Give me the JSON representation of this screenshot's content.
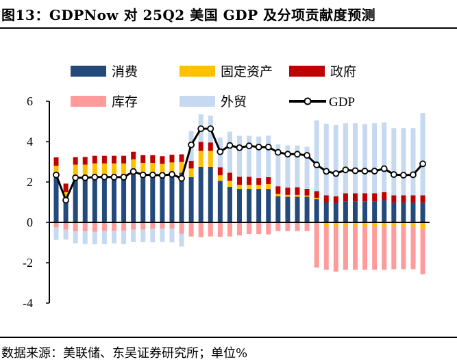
{
  "title": "图13：GDPNow 对 25Q2 美国 GDP 及分项贡献度预测",
  "source": "数据来源：美联储、东吴证券研究所；单位%",
  "chart_data": {
    "type": "bar",
    "stacked": true,
    "title": "",
    "xlabel": "",
    "ylabel": "",
    "ylim": [
      -4,
      6
    ],
    "yticks": [
      "6",
      "4",
      "2",
      "0",
      "-2",
      "-4"
    ],
    "ytick_values": [
      6,
      4,
      2,
      0,
      -2,
      -4
    ],
    "grid": false,
    "legend_position": "top",
    "n_points": 39,
    "series": [
      {
        "name": "消费",
        "type": "bar",
        "color": "#244A7C",
        "values": [
          2.35,
          1.28,
          2.24,
          2.24,
          2.24,
          2.28,
          2.28,
          2.28,
          2.52,
          2.35,
          2.35,
          2.31,
          2.37,
          2.46,
          2.24,
          2.75,
          2.75,
          2.05,
          1.76,
          1.66,
          1.66,
          1.66,
          1.66,
          1.29,
          1.27,
          1.27,
          1.27,
          1.15,
          1.0,
          0.95,
          1.04,
          1.04,
          1.04,
          1.04,
          1.1,
          0.98,
          0.98,
          0.98,
          0.98
        ]
      },
      {
        "name": "固定资产",
        "type": "bar",
        "color": "#FFC000",
        "values": [
          0.45,
          0.22,
          0.62,
          0.62,
          0.68,
          0.64,
          0.64,
          0.64,
          0.6,
          0.6,
          0.6,
          0.59,
          0.6,
          0.53,
          0.43,
          0.79,
          0.79,
          0.28,
          0.3,
          0.2,
          0.2,
          0.2,
          0.24,
          0.12,
          0.09,
          0.09,
          0.06,
          0.06,
          -0.2,
          -0.2,
          -0.2,
          -0.2,
          -0.2,
          -0.2,
          -0.2,
          -0.2,
          -0.2,
          -0.2,
          -0.33
        ]
      },
      {
        "name": "政府",
        "type": "bar",
        "color": "#C00000",
        "values": [
          0.42,
          0.42,
          0.37,
          0.38,
          0.38,
          0.38,
          0.38,
          0.38,
          0.38,
          0.38,
          0.38,
          0.38,
          0.38,
          0.38,
          0.38,
          0.45,
          0.42,
          0.4,
          0.4,
          0.4,
          0.4,
          0.34,
          0.34,
          0.38,
          0.36,
          0.38,
          0.33,
          0.34,
          0.34,
          0.34,
          0.4,
          0.4,
          0.4,
          0.4,
          0.4,
          0.36,
          0.36,
          0.36,
          0.36
        ]
      },
      {
        "name": "库存",
        "type": "bar",
        "color": "#FF9B9B",
        "values": [
          -0.25,
          -0.36,
          -0.45,
          -0.45,
          -0.47,
          -0.42,
          -0.42,
          -0.42,
          -0.36,
          -0.36,
          -0.31,
          -0.31,
          -0.31,
          -0.56,
          -0.7,
          -0.73,
          -0.7,
          -0.72,
          -0.7,
          -0.65,
          -0.58,
          -0.58,
          -0.6,
          -0.43,
          -0.43,
          -0.43,
          -0.43,
          -2.24,
          -2.15,
          -2.24,
          -2.15,
          -2.15,
          -2.15,
          -2.15,
          -2.15,
          -2.12,
          -2.12,
          -2.12,
          -2.24
        ]
      },
      {
        "name": "外贸",
        "type": "bar",
        "color": "#C6D9F1",
        "values": [
          -0.62,
          -0.49,
          -0.59,
          -0.62,
          -0.62,
          -0.66,
          -0.62,
          -0.66,
          -0.62,
          -0.62,
          -0.68,
          -0.66,
          -0.68,
          -0.64,
          1.48,
          1.36,
          1.33,
          1.47,
          2.03,
          2.03,
          2.03,
          2.05,
          2.06,
          2.07,
          2.09,
          2.07,
          2.09,
          3.5,
          3.55,
          3.53,
          3.47,
          3.47,
          3.43,
          3.47,
          3.45,
          3.33,
          3.33,
          3.33,
          4.08
        ]
      },
      {
        "name": "GDP",
        "type": "line",
        "color": "#000000",
        "values": [
          2.35,
          1.1,
          2.21,
          2.21,
          2.24,
          2.25,
          2.24,
          2.24,
          2.52,
          2.35,
          2.35,
          2.33,
          2.38,
          2.18,
          3.84,
          4.64,
          4.64,
          3.5,
          3.81,
          3.7,
          3.79,
          3.73,
          3.73,
          3.47,
          3.38,
          3.38,
          3.32,
          2.85,
          2.53,
          2.42,
          2.6,
          2.56,
          2.54,
          2.54,
          2.66,
          2.37,
          2.34,
          2.36,
          2.9
        ]
      }
    ]
  }
}
